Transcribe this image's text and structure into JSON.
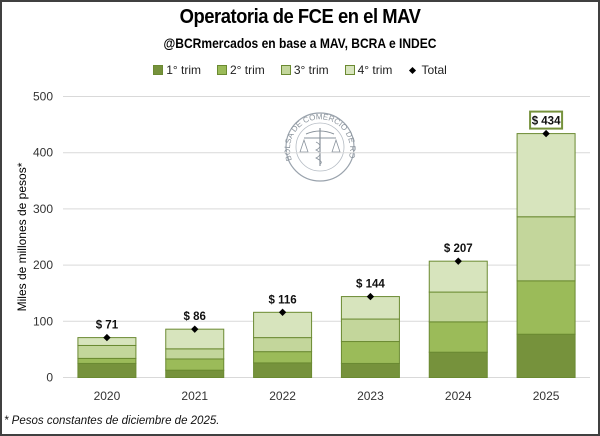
{
  "chart_data": {
    "type": "bar",
    "stacked": true,
    "title": "Operatoria de FCE en el MAV",
    "subtitle": "@BCRmercados en base a MAV, BCRA e INDEC",
    "xlabel": "",
    "ylabel": "Miles de millones de pesos*",
    "ylim": [
      0,
      500
    ],
    "yticks": [
      0,
      100,
      200,
      300,
      400,
      500
    ],
    "grid": true,
    "legend_position": "top",
    "categories": [
      "2020",
      "2021",
      "2022",
      "2023",
      "2024",
      "2025"
    ],
    "series": [
      {
        "name": "1° trim",
        "color": "#76923c",
        "values": [
          25,
          13,
          26,
          25,
          45,
          77
        ]
      },
      {
        "name": "2° trim",
        "color": "#9bbb59",
        "values": [
          9,
          20,
          20,
          39,
          54,
          95
        ]
      },
      {
        "name": "3° trim",
        "color": "#c3d69b",
        "values": [
          23,
          18,
          25,
          40,
          53,
          114
        ]
      },
      {
        "name": "4° trim",
        "color": "#d7e4bd",
        "values": [
          14,
          35,
          45,
          40,
          55,
          148
        ]
      }
    ],
    "total": {
      "name": "Total",
      "marker": "diamond",
      "values": [
        71,
        86,
        116,
        144,
        207,
        434
      ],
      "labels": [
        "$ 71",
        "$ 86",
        "$ 116",
        "$ 144",
        "$ 207",
        "$ 434"
      ],
      "highlighted_label_index": 5
    },
    "footnote": "* Pesos constantes de diciembre de 2025."
  },
  "watermark": {
    "text": "BOLSA DE COMERCIO DE ROSARIO",
    "icon": "caduceus-scales-seal-icon"
  },
  "colors": {
    "bar_border": "#6b8a32",
    "highlight_border": "#76923c",
    "gridline": "#d9d9d9"
  }
}
